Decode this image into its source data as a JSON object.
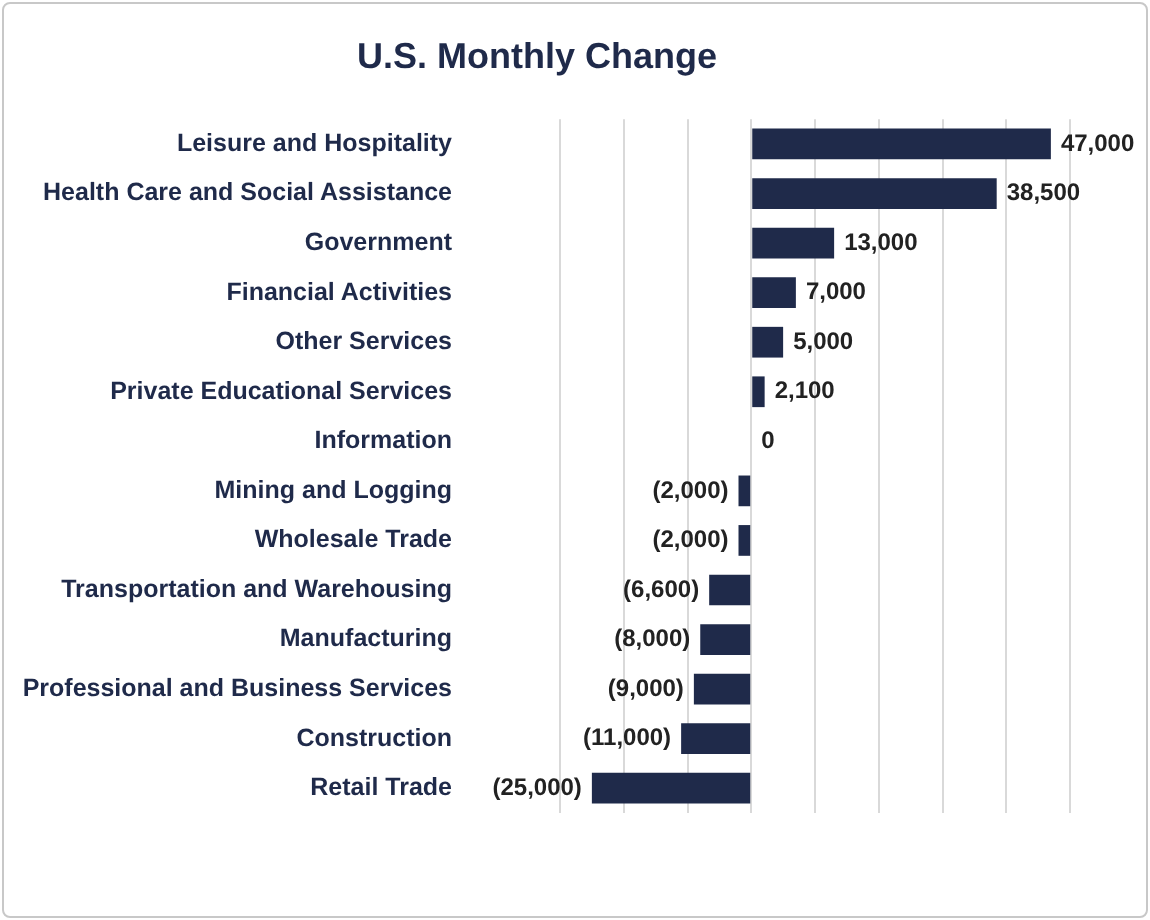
{
  "chart_data": {
    "type": "bar",
    "orientation": "horizontal",
    "title": "U.S. Monthly Change",
    "categories": [
      "Leisure and Hospitality",
      "Health Care and Social Assistance",
      "Government",
      "Financial Activities",
      "Other Services",
      "Private Educational Services",
      "Information",
      "Mining and Logging",
      "Wholesale Trade",
      "Transportation and Warehousing",
      "Manufacturing",
      "Professional and Business Services",
      "Construction",
      "Retail Trade"
    ],
    "values": [
      47000,
      38500,
      13000,
      7000,
      5000,
      2100,
      0,
      -2000,
      -2000,
      -6600,
      -8000,
      -9000,
      -11000,
      -25000
    ],
    "value_labels": [
      "47,000",
      "38,500",
      "13,000",
      "7,000",
      "5,000",
      "2,100",
      "0",
      "(2,000)",
      "(2,000)",
      "(6,600)",
      "(8,000)",
      "(9,000)",
      "(11,000)",
      "(25,000)"
    ],
    "color": "#1f2a4a",
    "xlim": [
      -30000,
      50000
    ],
    "xticks": [
      {
        "value": -30000,
        "label": null
      },
      {
        "value": -20000,
        "label": null
      },
      {
        "value": -10000,
        "label": null
      },
      {
        "value": 0,
        "label": null
      },
      {
        "value": 10000,
        "label": null
      },
      {
        "value": 20000,
        "label": null
      },
      {
        "value": 30000,
        "label": null
      },
      {
        "value": 40000,
        "label": null
      },
      {
        "value": 50000,
        "label": null
      }
    ],
    "grid": "x",
    "tick_labels": "y",
    "legend": false
  }
}
